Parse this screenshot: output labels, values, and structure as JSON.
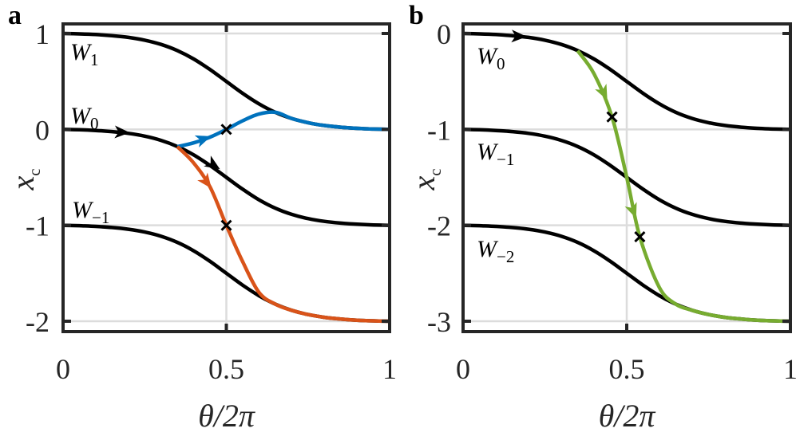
{
  "chart_data": [
    {
      "type": "line",
      "panel_label": "a",
      "xlabel": "θ/2π",
      "ylabel": {
        "main": "x",
        "sub": "c"
      },
      "xlim": [
        0,
        1
      ],
      "ylim": [
        -2,
        1
      ],
      "xticks": [
        "0",
        "0.5",
        "1"
      ],
      "xtick_values": [
        0,
        0.5,
        1
      ],
      "yticks": [
        "1",
        "0",
        "-1",
        "-2"
      ],
      "ytick_values": [
        1,
        0,
        -1,
        -2
      ],
      "grid": true,
      "x": [
        0,
        0.05,
        0.1,
        0.15,
        0.2,
        0.25,
        0.3,
        0.35,
        0.4,
        0.45,
        0.5,
        0.55,
        0.6,
        0.65,
        0.7,
        0.75,
        0.8,
        0.85,
        0.9,
        0.95,
        1
      ],
      "series": [
        {
          "name": "W1",
          "label": {
            "main": "W",
            "sub": "1"
          },
          "color": "#000000",
          "values": [
            1,
            0.996,
            0.989,
            0.977,
            0.959,
            0.93,
            0.886,
            0.822,
            0.734,
            0.624,
            0.5,
            0.376,
            0.266,
            0.178,
            0.114,
            0.07,
            0.041,
            0.023,
            0.011,
            0.004,
            0
          ]
        },
        {
          "name": "W0",
          "label": {
            "main": "W",
            "sub": "0"
          },
          "color": "#000000",
          "values": [
            0,
            -0.004,
            -0.011,
            -0.023,
            -0.041,
            -0.07,
            -0.114,
            -0.178,
            -0.266,
            -0.376,
            -0.5,
            -0.624,
            -0.734,
            -0.822,
            -0.886,
            -0.93,
            -0.959,
            -0.977,
            -0.989,
            -0.996,
            -1
          ]
        },
        {
          "name": "W-1",
          "label": {
            "main": "W",
            "sub": "−1"
          },
          "color": "#000000",
          "values": [
            -1,
            -1.004,
            -1.011,
            -1.023,
            -1.041,
            -1.07,
            -1.114,
            -1.178,
            -1.266,
            -1.376,
            -1.5,
            -1.624,
            -1.734,
            -1.822,
            -1.886,
            -1.93,
            -1.959,
            -1.977,
            -1.989,
            -1.996,
            -2
          ]
        }
      ],
      "trajectories": [
        {
          "color": "#0072BD",
          "points": [
            [
              0.35,
              -0.18
            ],
            [
              0.4,
              -0.14
            ],
            [
              0.45,
              -0.08
            ],
            [
              0.5,
              0
            ],
            [
              0.55,
              0.09
            ],
            [
              0.6,
              0.16
            ],
            [
              0.65,
              0.178
            ],
            [
              0.7,
              0.114
            ],
            [
              0.75,
              0.07
            ],
            [
              0.8,
              0.041
            ],
            [
              0.85,
              0.023
            ],
            [
              0.9,
              0.011
            ],
            [
              0.95,
              0.004
            ],
            [
              1,
              0
            ]
          ]
        },
        {
          "color": "#D95319",
          "points": [
            [
              0.35,
              -0.18
            ],
            [
              0.4,
              -0.35
            ],
            [
              0.45,
              -0.6
            ],
            [
              0.5,
              -1
            ],
            [
              0.55,
              -1.38
            ],
            [
              0.6,
              -1.7
            ],
            [
              0.65,
              -1.822
            ],
            [
              0.7,
              -1.886
            ],
            [
              0.75,
              -1.93
            ],
            [
              0.8,
              -1.959
            ],
            [
              0.85,
              -1.977
            ],
            [
              0.9,
              -1.989
            ],
            [
              0.95,
              -1.996
            ],
            [
              1,
              -2
            ]
          ]
        }
      ],
      "crosses": [
        [
          0.5,
          0
        ],
        [
          0.5,
          -1
        ]
      ],
      "arrows": [
        {
          "color": "#000000",
          "x": 0.18,
          "y": -0.03,
          "dx": 1,
          "dy": -0.15
        },
        {
          "color": "#000000",
          "x": 0.46,
          "y": -0.37,
          "dx": 1,
          "dy": -2.2
        },
        {
          "color": "#0072BD",
          "x": 0.43,
          "y": -0.1,
          "dx": 1,
          "dy": 1.2
        },
        {
          "color": "#D95319",
          "x": 0.44,
          "y": -0.55,
          "dx": 1,
          "dy": -4.5
        }
      ]
    },
    {
      "type": "line",
      "panel_label": "b",
      "xlabel": "θ/2π",
      "ylabel": {
        "main": "x",
        "sub": "c"
      },
      "xlim": [
        0,
        1
      ],
      "ylim": [
        -3,
        0
      ],
      "xticks": [
        "0",
        "0.5",
        "1"
      ],
      "xtick_values": [
        0,
        0.5,
        1
      ],
      "yticks": [
        "0",
        "-1",
        "-2",
        "-3"
      ],
      "ytick_values": [
        0,
        -1,
        -2,
        -3
      ],
      "grid": true,
      "x": [
        0,
        0.05,
        0.1,
        0.15,
        0.2,
        0.25,
        0.3,
        0.35,
        0.4,
        0.45,
        0.5,
        0.55,
        0.6,
        0.65,
        0.7,
        0.75,
        0.8,
        0.85,
        0.9,
        0.95,
        1
      ],
      "series": [
        {
          "name": "W0",
          "label": {
            "main": "W",
            "sub": "0"
          },
          "color": "#000000",
          "values": [
            0,
            -0.004,
            -0.011,
            -0.023,
            -0.041,
            -0.07,
            -0.114,
            -0.178,
            -0.266,
            -0.376,
            -0.5,
            -0.624,
            -0.734,
            -0.822,
            -0.886,
            -0.93,
            -0.959,
            -0.977,
            -0.989,
            -0.996,
            -1
          ]
        },
        {
          "name": "W-1",
          "label": {
            "main": "W",
            "sub": "−1"
          },
          "color": "#000000",
          "values": [
            -1,
            -1.004,
            -1.011,
            -1.023,
            -1.041,
            -1.07,
            -1.114,
            -1.178,
            -1.266,
            -1.376,
            -1.5,
            -1.624,
            -1.734,
            -1.822,
            -1.886,
            -1.93,
            -1.959,
            -1.977,
            -1.989,
            -1.996,
            -2
          ]
        },
        {
          "name": "W-2",
          "label": {
            "main": "W",
            "sub": "−2"
          },
          "color": "#000000",
          "values": [
            -2,
            -2.004,
            -2.011,
            -2.023,
            -2.041,
            -2.07,
            -2.114,
            -2.178,
            -2.266,
            -2.376,
            -2.5,
            -2.624,
            -2.734,
            -2.822,
            -2.886,
            -2.93,
            -2.959,
            -2.977,
            -2.989,
            -2.996,
            -3
          ]
        }
      ],
      "trajectories": [
        {
          "color": "#77AC30",
          "points": [
            [
              0.35,
              -0.18
            ],
            [
              0.4,
              -0.42
            ],
            [
              0.455,
              -0.87
            ],
            [
              0.5,
              -1.5
            ],
            [
              0.54,
              -2.12
            ],
            [
              0.6,
              -2.65
            ],
            [
              0.65,
              -2.822
            ],
            [
              0.7,
              -2.886
            ],
            [
              0.75,
              -2.93
            ],
            [
              0.8,
              -2.959
            ],
            [
              0.85,
              -2.977
            ],
            [
              0.9,
              -2.989
            ],
            [
              0.95,
              -2.996
            ],
            [
              1,
              -3
            ]
          ]
        }
      ],
      "crosses": [
        [
          0.455,
          -0.87
        ],
        [
          0.54,
          -2.12
        ]
      ],
      "arrows": [
        {
          "color": "#000000",
          "x": 0.17,
          "y": -0.03,
          "dx": 1,
          "dy": -0.15
        },
        {
          "color": "#77AC30",
          "x": 0.43,
          "y": -0.62,
          "dx": 1,
          "dy": -7
        },
        {
          "color": "#77AC30",
          "x": 0.52,
          "y": -1.85,
          "dx": 1,
          "dy": -9
        }
      ]
    }
  ]
}
